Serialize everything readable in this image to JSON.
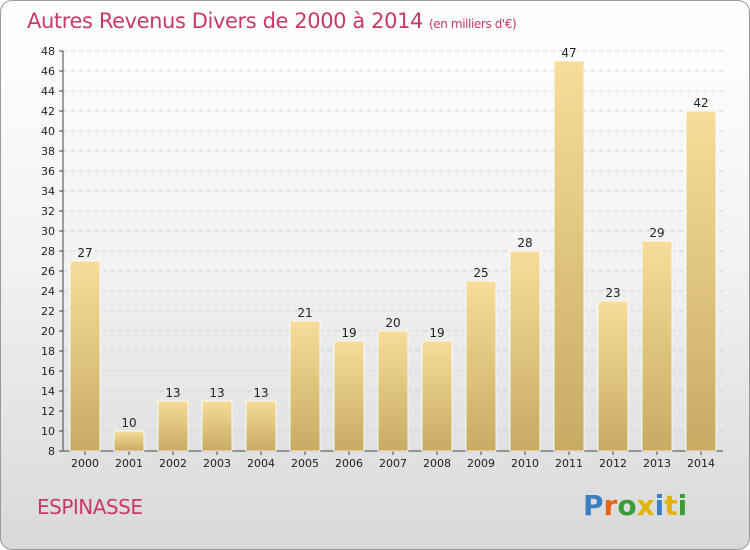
{
  "title": "Autres Revenus Divers de 2000 à 2014",
  "unit": "(en milliers d'€)",
  "commune": "ESPINASSE",
  "brand": "Proxiti",
  "colors": {
    "title": "#c8386a",
    "bar_light": "#f7dd99",
    "bar_dark": "#c8ab62",
    "brand_letters": [
      "#3a7fc4",
      "#e8641b",
      "#3a9d3a",
      "#e2b400",
      "#3a7fc4",
      "#e2b400",
      "#3a9d3a"
    ]
  },
  "chart_data": {
    "type": "bar",
    "categories": [
      "2000",
      "2001",
      "2002",
      "2003",
      "2004",
      "2005",
      "2006",
      "2007",
      "2008",
      "2009",
      "2010",
      "2011",
      "2012",
      "2013",
      "2014"
    ],
    "values": [
      27,
      10,
      13,
      13,
      13,
      21,
      19,
      20,
      19,
      25,
      28,
      47,
      23,
      29,
      42
    ],
    "ylim": [
      8,
      48
    ],
    "yticks": [
      8,
      10,
      12,
      14,
      16,
      18,
      20,
      22,
      24,
      26,
      28,
      30,
      32,
      34,
      36,
      38,
      40,
      42,
      44,
      46,
      48
    ],
    "grid": true,
    "data_labels": true
  }
}
